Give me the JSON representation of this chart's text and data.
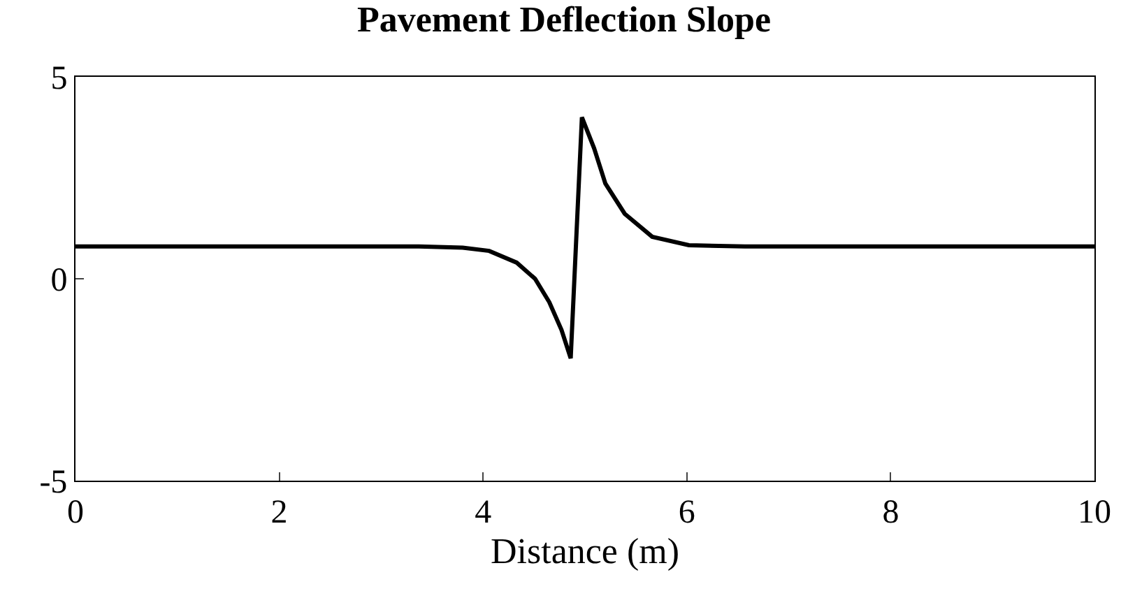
{
  "chart_data": {
    "type": "line",
    "title": "Pavement Deflection Slope",
    "xlabel": "Distance (m)",
    "x": [
      0,
      2,
      3.37,
      3.8,
      4.06,
      4.33,
      4.51,
      4.65,
      4.77,
      4.86,
      4.97,
      5.09,
      5.2,
      5.39,
      5.66,
      6.02,
      6.57,
      8,
      10
    ],
    "series": [
      {
        "color": "#000000",
        "values": [
          0.8,
          0.8,
          0.8,
          0.77,
          0.69,
          0.4,
          0.0,
          -0.58,
          -1.27,
          -1.97,
          4.0,
          3.23,
          2.36,
          1.61,
          1.04,
          0.83,
          0.8,
          0.8,
          0.8
        ]
      }
    ],
    "xlim": [
      0,
      10
    ],
    "ylim": [
      -5,
      5
    ],
    "xticks": [
      0,
      2,
      4,
      6,
      8,
      10
    ],
    "yticks": [
      -5,
      0,
      5
    ],
    "marker": "none",
    "line_style": "solid"
  }
}
